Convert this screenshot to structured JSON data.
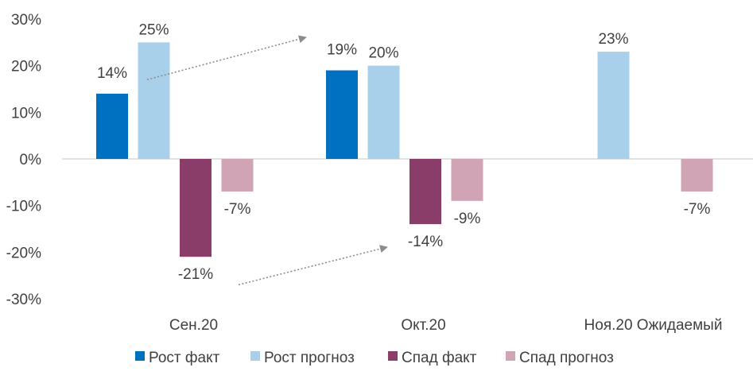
{
  "chart_data": {
    "type": "bar",
    "categories": [
      "Сен.20",
      "Окт.20",
      "Ноя.20 Ожидаемый"
    ],
    "series": [
      {
        "name": "Рост факт",
        "values": [
          14,
          19,
          null
        ],
        "color": "#0070C0"
      },
      {
        "name": "Рост прогноз",
        "values": [
          25,
          20,
          23
        ],
        "color": "#A8D0EA"
      },
      {
        "name": "Спад факт",
        "values": [
          -21,
          -14,
          null
        ],
        "color": "#8B3D6A"
      },
      {
        "name": "Спад прогноз",
        "values": [
          -7,
          -9,
          -7
        ],
        "color": "#D1A4B5"
      }
    ],
    "data_labels": [
      [
        "14%",
        "19%",
        ""
      ],
      [
        "25%",
        "20%",
        "23%"
      ],
      [
        "-21%",
        "-14%",
        ""
      ],
      [
        "-7%",
        "-9%",
        "-7%"
      ]
    ],
    "ylim": [
      -30,
      30
    ],
    "yticks": [
      "30%",
      "20%",
      "10%",
      "0%",
      "-10%",
      "-20%",
      "-30%"
    ],
    "ytick_values": [
      30,
      20,
      10,
      0,
      -10,
      -20,
      -30
    ],
    "title": "",
    "xlabel": "",
    "ylabel": "",
    "grid": false,
    "legend_position": "bottom",
    "annotations": [
      {
        "type": "dotted-arrow",
        "from": {
          "category": 0,
          "value": 17
        },
        "to": {
          "category": 1,
          "value": 26
        }
      },
      {
        "type": "dotted-arrow",
        "from": {
          "category": 0,
          "value": -27
        },
        "to": {
          "category": 1,
          "value": -19
        }
      }
    ]
  }
}
